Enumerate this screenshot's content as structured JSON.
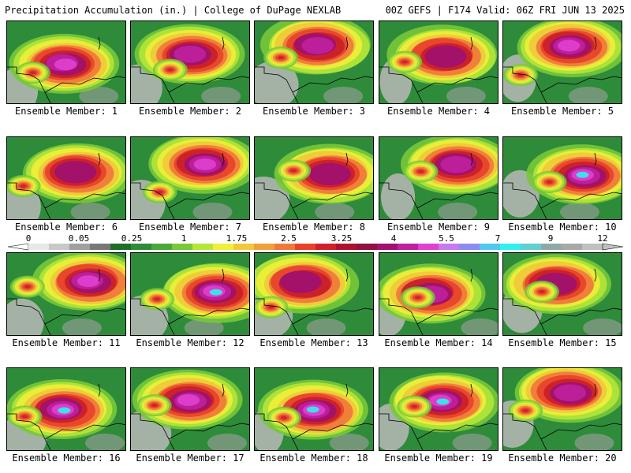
{
  "header": {
    "left_title": "Precipitation Accumulation (in.) | College of DuPage NEXLAB",
    "right_title": "00Z GEFS | F174 Valid: 06Z FRI JUN 13 2025"
  },
  "panels": [
    {
      "label": "Ensemble Member: 1"
    },
    {
      "label": "Ensemble Member: 2"
    },
    {
      "label": "Ensemble Member: 3"
    },
    {
      "label": "Ensemble Member: 4"
    },
    {
      "label": "Ensemble Member: 5"
    },
    {
      "label": "Ensemble Member: 6"
    },
    {
      "label": "Ensemble Member: 7"
    },
    {
      "label": "Ensemble Member: 8"
    },
    {
      "label": "Ensemble Member: 9"
    },
    {
      "label": "Ensemble Member: 10"
    },
    {
      "label": "Ensemble Member: 11"
    },
    {
      "label": "Ensemble Member: 12"
    },
    {
      "label": "Ensemble Member: 13"
    },
    {
      "label": "Ensemble Member: 14"
    },
    {
      "label": "Ensemble Member: 15"
    },
    {
      "label": "Ensemble Member: 16"
    },
    {
      "label": "Ensemble Member: 17"
    },
    {
      "label": "Ensemble Member: 18"
    },
    {
      "label": "Ensemble Member: 19"
    },
    {
      "label": "Ensemble Member: 20"
    }
  ],
  "colorbar": {
    "tick_labels": [
      "0",
      "0.05",
      "0.25",
      "1",
      "1.75",
      "2.5",
      "3.25",
      "4",
      "5.5",
      "7",
      "9",
      "12"
    ],
    "colors": [
      "#e8e8e8",
      "#c8c8c8",
      "#a0a0a0",
      "#787878",
      "#1f6e2a",
      "#2e8b3a",
      "#4aa83a",
      "#78c83a",
      "#b4e63a",
      "#f0f03a",
      "#f0c83a",
      "#f0a03a",
      "#f0783a",
      "#e8402a",
      "#d0202a",
      "#b01030",
      "#901040",
      "#a01070",
      "#c020a0",
      "#e040d0",
      "#c878f0",
      "#8c8cf0",
      "#50c8f0",
      "#30f0f0",
      "#60d0d0",
      "#90a8a8",
      "#a8a8a8",
      "#c0c0c0"
    ]
  }
}
